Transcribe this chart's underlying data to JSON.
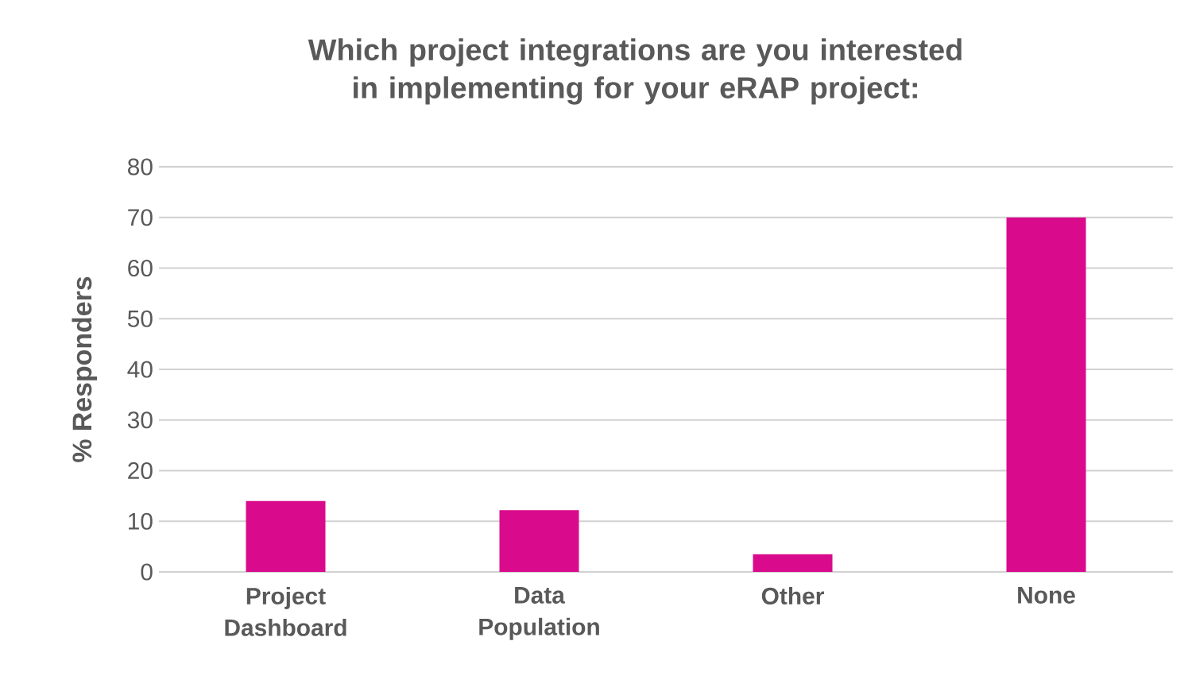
{
  "chart_data": {
    "type": "bar",
    "title": "Which project integrations are you interested in implementing for your eRAP project:",
    "ylabel": "% Responders",
    "categories": [
      "Project Dashboard",
      "Data Population",
      "Other",
      "None"
    ],
    "values": [
      14,
      12.2,
      3.5,
      70
    ],
    "color": "#d90b8c",
    "ylim": [
      0,
      80
    ],
    "yticks": [
      0,
      10,
      20,
      30,
      40,
      50,
      60,
      70,
      80
    ],
    "grid": "y"
  }
}
